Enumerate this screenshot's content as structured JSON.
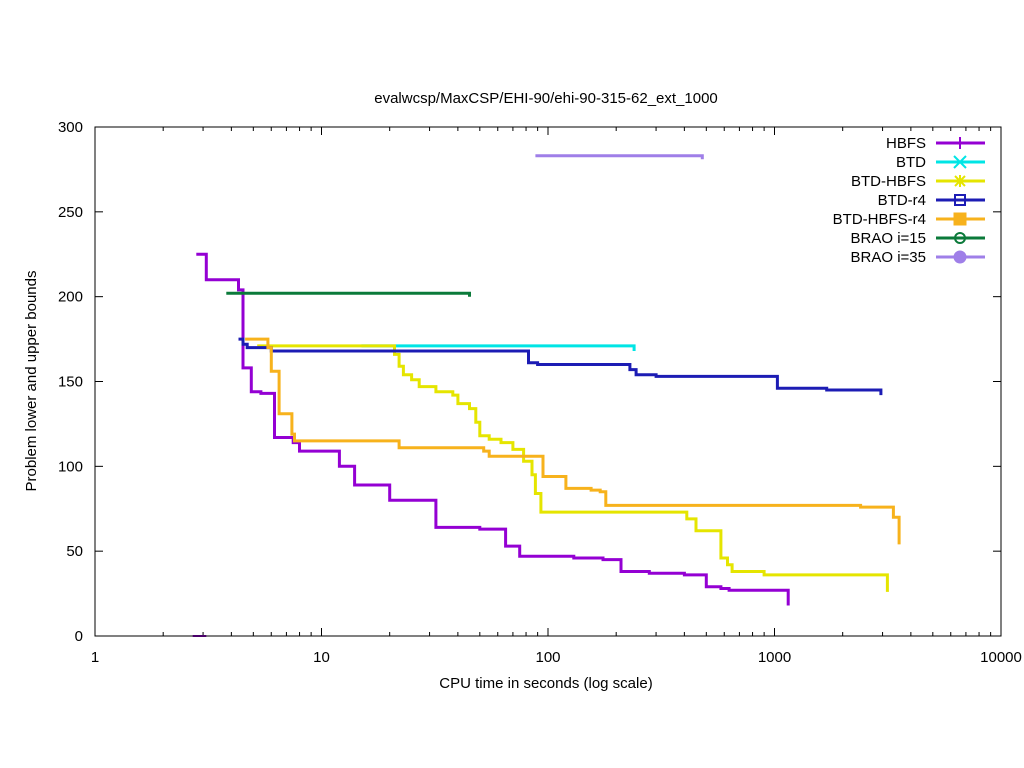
{
  "chart_data": {
    "type": "line",
    "title": "evalwcsp/MaxCSP/EHI-90/ehi-90-315-62_ext_1000",
    "xlabel": "CPU time in seconds (log scale)",
    "ylabel": "Problem lower and upper bounds",
    "xscale": "log",
    "xlim": [
      1,
      10000
    ],
    "ylim": [
      0,
      300
    ],
    "xticks": [
      1,
      10,
      100,
      1000,
      10000
    ],
    "xtick_labels": [
      "1",
      "10",
      "100",
      "1000",
      "10000"
    ],
    "yticks": [
      0,
      50,
      100,
      150,
      200,
      250,
      300
    ],
    "ytick_labels": [
      "0",
      "50",
      "100",
      "150",
      "200",
      "250",
      "300"
    ],
    "legend_position": "top-right",
    "series": [
      {
        "name": "HBFS",
        "color": "#9400d3",
        "marker": "plus",
        "steps": [
          [
            2.7,
            0
          ],
          [
            3.1,
            0
          ]
        ],
        "upper": [
          [
            2.8,
            225
          ],
          [
            3.1,
            225
          ],
          [
            3.1,
            210
          ],
          [
            4.3,
            210
          ],
          [
            4.3,
            204
          ],
          [
            4.5,
            204
          ],
          [
            4.5,
            158
          ],
          [
            4.9,
            158
          ],
          [
            4.9,
            144
          ],
          [
            5.4,
            144
          ],
          [
            5.4,
            143
          ],
          [
            6.2,
            143
          ],
          [
            6.2,
            117
          ],
          [
            7.5,
            117
          ],
          [
            7.5,
            114
          ],
          [
            8.0,
            114
          ],
          [
            8.0,
            109
          ],
          [
            12.0,
            109
          ],
          [
            12.0,
            100
          ],
          [
            14.0,
            100
          ],
          [
            14.0,
            89
          ],
          [
            20.0,
            89
          ],
          [
            20.0,
            80
          ],
          [
            32.0,
            80
          ],
          [
            32.0,
            64
          ],
          [
            50.0,
            64
          ],
          [
            50.0,
            63
          ],
          [
            65.0,
            63
          ],
          [
            65.0,
            53
          ],
          [
            75.0,
            53
          ],
          [
            75.0,
            47
          ],
          [
            130.0,
            47
          ],
          [
            130.0,
            46
          ],
          [
            175.0,
            46
          ],
          [
            175.0,
            45
          ],
          [
            210.0,
            45
          ],
          [
            210.0,
            38
          ],
          [
            280.0,
            38
          ],
          [
            280.0,
            37
          ],
          [
            400.0,
            37
          ],
          [
            400.0,
            36
          ],
          [
            500.0,
            36
          ],
          [
            500.0,
            29
          ],
          [
            580.0,
            29
          ],
          [
            580.0,
            28
          ],
          [
            630.0,
            28
          ],
          [
            630.0,
            27
          ],
          [
            1150.0,
            27
          ],
          [
            1150.0,
            18
          ]
        ]
      },
      {
        "name": "BTD",
        "color": "#00e5e5",
        "marker": "cross",
        "upper": [
          [
            15.0,
            171
          ],
          [
            240.0,
            171
          ],
          [
            240.0,
            168
          ]
        ]
      },
      {
        "name": "BTD-HBFS",
        "color": "#e5e500",
        "marker": "star",
        "upper": [
          [
            5.2,
            171
          ],
          [
            21.0,
            171
          ],
          [
            21.0,
            166
          ],
          [
            22.0,
            166
          ],
          [
            22.0,
            159
          ],
          [
            23.0,
            159
          ],
          [
            23.0,
            154
          ],
          [
            25.0,
            154
          ],
          [
            25.0,
            151
          ],
          [
            27.0,
            151
          ],
          [
            27.0,
            147
          ],
          [
            32.0,
            147
          ],
          [
            32.0,
            144
          ],
          [
            38.0,
            144
          ],
          [
            38.0,
            142
          ],
          [
            40.0,
            142
          ],
          [
            40.0,
            137
          ],
          [
            45.0,
            137
          ],
          [
            45.0,
            134
          ],
          [
            48.0,
            134
          ],
          [
            48.0,
            126
          ],
          [
            50.0,
            126
          ],
          [
            50.0,
            118
          ],
          [
            55.0,
            118
          ],
          [
            55.0,
            116
          ],
          [
            62.0,
            116
          ],
          [
            62.0,
            114
          ],
          [
            70.0,
            114
          ],
          [
            70.0,
            110
          ],
          [
            78.0,
            110
          ],
          [
            78.0,
            103
          ],
          [
            85.0,
            103
          ],
          [
            85.0,
            95
          ],
          [
            88.0,
            95
          ],
          [
            88.0,
            84
          ],
          [
            93.0,
            84
          ],
          [
            93.0,
            73
          ],
          [
            410.0,
            73
          ],
          [
            410.0,
            69
          ],
          [
            450.0,
            69
          ],
          [
            450.0,
            62
          ],
          [
            580.0,
            62
          ],
          [
            580.0,
            46
          ],
          [
            620.0,
            46
          ],
          [
            620.0,
            42
          ],
          [
            650.0,
            42
          ],
          [
            650.0,
            38
          ],
          [
            900.0,
            38
          ],
          [
            900.0,
            36
          ],
          [
            3150.0,
            36
          ],
          [
            3150.0,
            26
          ]
        ]
      },
      {
        "name": "BTD-r4",
        "color": "#1c1cb4",
        "marker": "box",
        "upper": [
          [
            4.3,
            175
          ],
          [
            4.5,
            175
          ],
          [
            4.5,
            172
          ],
          [
            4.7,
            172
          ],
          [
            4.7,
            170
          ],
          [
            6.0,
            170
          ],
          [
            6.0,
            168
          ],
          [
            82.0,
            168
          ],
          [
            82.0,
            161
          ],
          [
            90.0,
            161
          ],
          [
            90.0,
            160
          ],
          [
            230.0,
            160
          ],
          [
            230.0,
            157
          ],
          [
            245.0,
            157
          ],
          [
            245.0,
            154
          ],
          [
            300.0,
            154
          ],
          [
            300.0,
            153
          ],
          [
            1030.0,
            153
          ],
          [
            1030.0,
            146
          ],
          [
            1700.0,
            146
          ],
          [
            1700.0,
            145
          ],
          [
            2950.0,
            145
          ],
          [
            2950.0,
            142
          ]
        ]
      },
      {
        "name": "BTD-HBFS-r4",
        "color": "#f7b21c",
        "marker": "filled-box",
        "upper": [
          [
            4.6,
            175
          ],
          [
            5.8,
            175
          ],
          [
            5.8,
            170
          ],
          [
            6.0,
            170
          ],
          [
            6.0,
            156
          ],
          [
            6.5,
            156
          ],
          [
            6.5,
            131
          ],
          [
            7.4,
            131
          ],
          [
            7.4,
            119
          ],
          [
            7.6,
            119
          ],
          [
            7.6,
            115
          ],
          [
            22.0,
            115
          ],
          [
            22.0,
            111
          ],
          [
            52.0,
            111
          ],
          [
            52.0,
            109
          ],
          [
            55.0,
            109
          ],
          [
            55.0,
            106
          ],
          [
            95.0,
            106
          ],
          [
            95.0,
            94
          ],
          [
            120.0,
            94
          ],
          [
            120.0,
            87
          ],
          [
            155.0,
            87
          ],
          [
            155.0,
            86
          ],
          [
            170.0,
            86
          ],
          [
            170.0,
            85
          ],
          [
            180.0,
            85
          ],
          [
            180.0,
            77
          ],
          [
            2400.0,
            77
          ],
          [
            2400.0,
            76
          ],
          [
            3350.0,
            76
          ],
          [
            3350.0,
            70
          ],
          [
            3550.0,
            70
          ],
          [
            3550.0,
            54
          ]
        ]
      },
      {
        "name": "BRAO i=15",
        "color": "#0b7a3a",
        "marker": "circle",
        "upper": [
          [
            3.8,
            202
          ],
          [
            45.0,
            202
          ],
          [
            45.0,
            200
          ]
        ]
      },
      {
        "name": "BRAO i=35",
        "color": "#9f7fe8",
        "marker": "filled-circle",
        "upper": [
          [
            88.0,
            283
          ],
          [
            480.0,
            283
          ],
          [
            480.0,
            281
          ]
        ]
      }
    ]
  }
}
